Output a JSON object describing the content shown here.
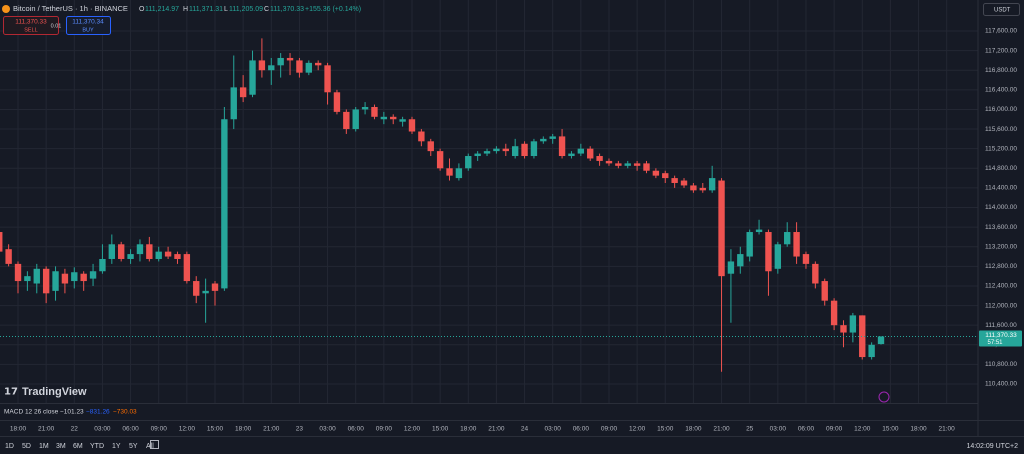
{
  "header": {
    "symbol": "Bitcoin / TetherUS · 1h · BINANCE",
    "ohlc": [
      {
        "label": "O",
        "value": "111,214.97"
      },
      {
        "label": "H",
        "value": "111,371.31"
      },
      {
        "label": "L",
        "value": "111,205.09"
      },
      {
        "label": "C",
        "value": "111,370.33"
      }
    ],
    "change": "+155.36 (+0.14%)",
    "currency": "USDT"
  },
  "trade": {
    "sell_price": "111,370.33",
    "sell_label": "SELL",
    "quantity": "0.01",
    "buy_price": "111,370.34",
    "buy_label": "BUY"
  },
  "branding": "TradingView",
  "indicator": {
    "label": "MACD 12 26 close",
    "values": [
      "−101.23",
      "−831.26",
      "−730.03"
    ]
  },
  "toolbar": {
    "timeframes": [
      "1D",
      "5D",
      "1M",
      "3M",
      "6M",
      "YTD",
      "1Y",
      "5Y",
      "All"
    ],
    "clock": "14:02:09 UTC+2"
  },
  "chart_data": {
    "type": "candlestick",
    "up_color": "#26a69a",
    "down_color": "#ef5350",
    "grid": true,
    "x": [
      0,
      1,
      2,
      3,
      4,
      5,
      6,
      7,
      8,
      9,
      10,
      11,
      12,
      13,
      14,
      15,
      16,
      17,
      18,
      19,
      20,
      21,
      22,
      23,
      24,
      25,
      26,
      27,
      28,
      29,
      30,
      31,
      32,
      33,
      34,
      35,
      36,
      37,
      38,
      39,
      40,
      41,
      42,
      43,
      44,
      45,
      46,
      47,
      48,
      49,
      50,
      51,
      52,
      53,
      54,
      55,
      56,
      57,
      58,
      59,
      60,
      61,
      62,
      63,
      64,
      65,
      66,
      67,
      68,
      69,
      70,
      71,
      72,
      73,
      74,
      75,
      76,
      77,
      78,
      79,
      80,
      81,
      82,
      83,
      84,
      85,
      86,
      87,
      88,
      89,
      90,
      91,
      92,
      93,
      94
    ],
    "open": [
      113500,
      113150,
      112850,
      112500,
      112450,
      112750,
      112300,
      112650,
      112500,
      112650,
      112550,
      112700,
      112950,
      113250,
      112950,
      113050,
      113250,
      112950,
      113100,
      113050,
      113050,
      112500,
      112250,
      112450,
      112350,
      115800,
      116450,
      116300,
      117000,
      116800,
      116900,
      117050,
      117000,
      116750,
      116950,
      116900,
      116350,
      115950,
      115600,
      116000,
      116050,
      115800,
      115850,
      115750,
      115800,
      115550,
      115350,
      115150,
      114800,
      114600,
      114800,
      115050,
      115100,
      115150,
      115200,
      115050,
      115300,
      115050,
      115350,
      115400,
      115450,
      115050,
      115100,
      115200,
      115050,
      114950,
      114900,
      114850,
      114900,
      114900,
      114750,
      114700,
      114600,
      114550,
      114450,
      114400,
      114350,
      114550,
      112650,
      112800,
      113000,
      113500,
      113500,
      112750,
      113250,
      113500,
      113050,
      112850,
      112500,
      112100,
      111600,
      111450,
      111800,
      110950,
      111214.97
    ],
    "high": [
      113560,
      113250,
      112900,
      112700,
      112850,
      112800,
      112800,
      112750,
      112780,
      112700,
      112850,
      113250,
      113450,
      113300,
      113150,
      113350,
      113400,
      113200,
      113200,
      113100,
      113100,
      112600,
      112550,
      112500,
      116050,
      117100,
      116700,
      117200,
      117450,
      117050,
      117150,
      117150,
      117050,
      117000,
      117000,
      116950,
      116400,
      116000,
      116050,
      116150,
      116100,
      115950,
      115900,
      115850,
      115850,
      115600,
      115400,
      115200,
      115000,
      114900,
      115100,
      115150,
      115200,
      115250,
      115300,
      115400,
      115350,
      115400,
      115450,
      115500,
      115600,
      115150,
      115300,
      115250,
      115100,
      115000,
      114950,
      114950,
      114950,
      114950,
      114800,
      114750,
      114650,
      114600,
      114500,
      114500,
      114850,
      114600,
      113150,
      113200,
      113550,
      113750,
      113550,
      113300,
      113700,
      113700,
      113100,
      112900,
      112550,
      112150,
      111700,
      111850,
      111800,
      111250,
      111371.31
    ],
    "low": [
      113000,
      112800,
      112250,
      112300,
      112250,
      112050,
      112100,
      112250,
      112350,
      112300,
      112400,
      112650,
      112850,
      112900,
      112850,
      112900,
      112900,
      112900,
      112950,
      112850,
      112450,
      112050,
      111650,
      112000,
      112300,
      115600,
      116150,
      116250,
      116650,
      116500,
      116650,
      116700,
      116650,
      116700,
      116800,
      116100,
      115900,
      115500,
      115550,
      115900,
      115800,
      115700,
      115700,
      115650,
      115500,
      115250,
      115050,
      114750,
      114550,
      114550,
      114750,
      114950,
      115050,
      115100,
      115050,
      115000,
      115000,
      115000,
      115300,
      115300,
      115000,
      115000,
      115050,
      114950,
      114850,
      114850,
      114800,
      114800,
      114750,
      114700,
      114600,
      114500,
      114400,
      114400,
      114300,
      114300,
      114300,
      110650,
      111650,
      112650,
      112900,
      113450,
      112200,
      112650,
      113200,
      112850,
      112750,
      112350,
      112000,
      111500,
      111150,
      111250,
      110900,
      110900,
      111205.09
    ],
    "close": [
      113100,
      112850,
      112500,
      112600,
      112750,
      112250,
      112700,
      112450,
      112680,
      112500,
      112700,
      112950,
      113250,
      112950,
      113050,
      113250,
      112950,
      113100,
      113000,
      112950,
      112500,
      112200,
      112300,
      112300,
      115800,
      116450,
      116250,
      117000,
      116800,
      116900,
      117050,
      117000,
      116750,
      116950,
      116900,
      116350,
      115950,
      115600,
      116000,
      116050,
      115850,
      115850,
      115800,
      115800,
      115550,
      115350,
      115150,
      114800,
      114650,
      114800,
      115050,
      115100,
      115150,
      115200,
      115150,
      115250,
      115050,
      115350,
      115400,
      115450,
      115050,
      115100,
      115200,
      115000,
      114950,
      114900,
      114850,
      114900,
      114850,
      114750,
      114650,
      114600,
      114500,
      114450,
      114350,
      114350,
      114600,
      112600,
      112900,
      113050,
      113500,
      113550,
      112700,
      113250,
      113500,
      113000,
      112850,
      112450,
      112100,
      111600,
      111450,
      111800,
      110950,
      111200,
      111370.33
    ],
    "last_price": {
      "value": 111370.33,
      "label": "111,370.33"
    },
    "countdown": "57:51",
    "xlim": [
      0.08,
      104.34
    ],
    "xticks": [
      {
        "value": 2,
        "label": "18:00"
      },
      {
        "value": 5,
        "label": "21:00"
      },
      {
        "value": 8,
        "label": "22"
      },
      {
        "value": 11,
        "label": "03:00"
      },
      {
        "value": 14,
        "label": "06:00"
      },
      {
        "value": 17,
        "label": "09:00"
      },
      {
        "value": 20,
        "label": "12:00"
      },
      {
        "value": 23,
        "label": "15:00"
      },
      {
        "value": 26,
        "label": "18:00"
      },
      {
        "value": 29,
        "label": "21:00"
      },
      {
        "value": 32,
        "label": "23"
      },
      {
        "value": 35,
        "label": "03:00"
      },
      {
        "value": 38,
        "label": "06:00"
      },
      {
        "value": 41,
        "label": "09:00"
      },
      {
        "value": 44,
        "label": "12:00"
      },
      {
        "value": 47,
        "label": "15:00"
      },
      {
        "value": 50,
        "label": "18:00"
      },
      {
        "value": 53,
        "label": "21:00"
      },
      {
        "value": 56,
        "label": "24"
      },
      {
        "value": 59,
        "label": "03:00"
      },
      {
        "value": 62,
        "label": "06:00"
      },
      {
        "value": 65,
        "label": "09:00"
      },
      {
        "value": 68,
        "label": "12:00"
      },
      {
        "value": 71,
        "label": "15:00"
      },
      {
        "value": 74,
        "label": "18:00"
      },
      {
        "value": 77,
        "label": "21:00"
      },
      {
        "value": 80,
        "label": "25"
      },
      {
        "value": 83,
        "label": "03:00"
      },
      {
        "value": 86,
        "label": "06:00"
      },
      {
        "value": 89,
        "label": "09:00"
      },
      {
        "value": 92,
        "label": "12:00"
      },
      {
        "value": 95,
        "label": "15:00"
      },
      {
        "value": 98,
        "label": "18:00"
      },
      {
        "value": 101,
        "label": "21:00"
      }
    ],
    "ylim": [
      110013,
      118232
    ],
    "yticks": [
      {
        "value": 117600,
        "label": "117,600.00"
      },
      {
        "value": 117200,
        "label": "117,200.00"
      },
      {
        "value": 116800,
        "label": "116,800.00"
      },
      {
        "value": 116400,
        "label": "116,400.00"
      },
      {
        "value": 116000,
        "label": "116,000.00"
      },
      {
        "value": 115600,
        "label": "115,600.00"
      },
      {
        "value": 115200,
        "label": "115,200.00"
      },
      {
        "value": 114800,
        "label": "114,800.00"
      },
      {
        "value": 114400,
        "label": "114,400.00"
      },
      {
        "value": 114000,
        "label": "114,000.00"
      },
      {
        "value": 113600,
        "label": "113,600.00"
      },
      {
        "value": 113200,
        "label": "113,200.00"
      },
      {
        "value": 112800,
        "label": "112,800.00"
      },
      {
        "value": 112400,
        "label": "112,400.00"
      },
      {
        "value": 112000,
        "label": "112,000.00"
      },
      {
        "value": 111600,
        "label": "111,600.00"
      },
      {
        "value": 111200,
        "label": "111,200.00"
      },
      {
        "value": 110800,
        "label": "110,800.00"
      },
      {
        "value": 110400,
        "label": "110,400.00"
      }
    ]
  }
}
